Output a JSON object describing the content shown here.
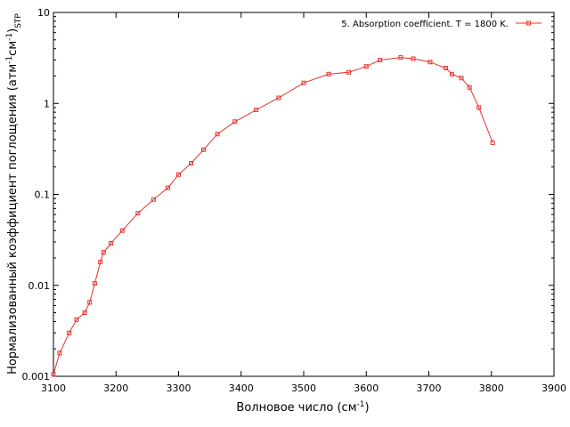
{
  "chart_data": {
    "type": "line",
    "xlabel": {
      "base": "Волновое число (см",
      "sup": "-1",
      "tail": ")"
    },
    "ylabel": {
      "p1": "Нормализованный коэффициент поглощения (атм",
      "sup1": "-1",
      "p2": "см",
      "sup2": "-1",
      "p3": ")",
      "sub": "STP"
    },
    "xlim": [
      3100,
      3900
    ],
    "ylim": [
      0.001,
      10
    ],
    "yscale": "log",
    "grid": false,
    "legend_position": "top-right",
    "x_ticks": [
      3100,
      3200,
      3300,
      3400,
      3500,
      3600,
      3700,
      3800,
      3900
    ],
    "x_tick_labels": [
      "3100",
      "3200",
      "3300",
      "3400",
      "3500",
      "3600",
      "3700",
      "3800",
      "3900"
    ],
    "y_ticks": [
      0.001,
      0.01,
      0.1,
      1,
      10
    ],
    "y_tick_labels": [
      "0.001",
      "0.01",
      "0.1",
      "1",
      "10"
    ],
    "series": [
      {
        "name": "5. Absorption coefficient. T = 1800 K.",
        "color": "#e8312a",
        "marker": "square",
        "points": [
          [
            3100,
            0.00105
          ],
          [
            3110,
            0.0018
          ],
          [
            3125,
            0.003
          ],
          [
            3137,
            0.0042
          ],
          [
            3150,
            0.005
          ],
          [
            3158,
            0.0065
          ],
          [
            3166,
            0.0105
          ],
          [
            3175,
            0.018
          ],
          [
            3180,
            0.023
          ],
          [
            3192,
            0.029
          ],
          [
            3210,
            0.04
          ],
          [
            3235,
            0.062
          ],
          [
            3260,
            0.088
          ],
          [
            3283,
            0.118
          ],
          [
            3300,
            0.165
          ],
          [
            3320,
            0.22
          ],
          [
            3340,
            0.31
          ],
          [
            3362,
            0.46
          ],
          [
            3390,
            0.63
          ],
          [
            3424,
            0.85
          ],
          [
            3460,
            1.15
          ],
          [
            3500,
            1.68
          ],
          [
            3540,
            2.1
          ],
          [
            3572,
            2.2
          ],
          [
            3600,
            2.55
          ],
          [
            3622,
            3.0
          ],
          [
            3655,
            3.2
          ],
          [
            3675,
            3.1
          ],
          [
            3702,
            2.85
          ],
          [
            3727,
            2.45
          ],
          [
            3737,
            2.1
          ],
          [
            3752,
            1.9
          ],
          [
            3765,
            1.5
          ],
          [
            3780,
            0.9
          ],
          [
            3802,
            0.37
          ]
        ]
      }
    ]
  }
}
